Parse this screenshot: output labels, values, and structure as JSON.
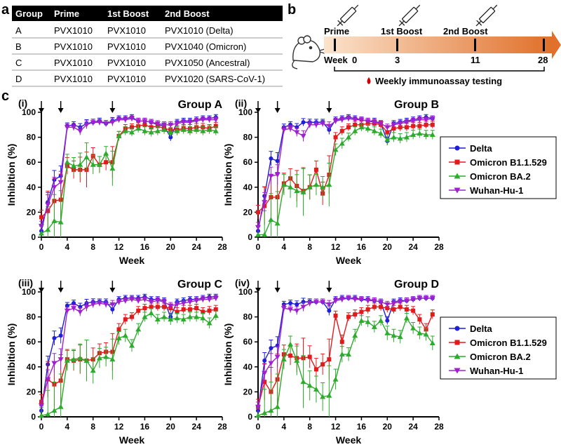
{
  "panel_labels": {
    "a": "a",
    "b": "b",
    "c": "c"
  },
  "table": {
    "headers": [
      "Group",
      "Prime",
      "1st Boost",
      "2nd Boost"
    ],
    "rows": [
      [
        "A",
        "PVX1010",
        "PVX1010",
        "PVX1010 (Delta)"
      ],
      [
        "B",
        "PVX1010",
        "PVX1010",
        "PVX1040 (Omicron)"
      ],
      [
        "C",
        "PVX1010",
        "PVX1010",
        "PVX1050 (Ancestral)"
      ],
      [
        "D",
        "PVX1010",
        "PVX1010",
        "PVX1020 (SARS-CoV-1)"
      ]
    ]
  },
  "timeline": {
    "events": [
      {
        "label": "Prime",
        "week": "0"
      },
      {
        "label": "1st Boost",
        "week": "3"
      },
      {
        "label": "2nd Boost",
        "week": "11"
      },
      {
        "label": "",
        "week": "28"
      }
    ],
    "week_prefix": "Week",
    "testing_label": "Weekly immunoassay testing",
    "colors": {
      "gradient_start": "#fbe3cc",
      "gradient_end": "#e0702a",
      "drop": "#cc0000"
    }
  },
  "legend": {
    "entries": [
      "Delta",
      "Omicron B1.1.529",
      "Omicron BA.2",
      "Wuhan-Hu-1"
    ]
  },
  "chart_data": [
    {
      "type": "line",
      "panel": "(i)",
      "title": "Group A",
      "xlabel": "Week",
      "ylabel": "Inhibition (%)",
      "xlim": [
        0,
        28
      ],
      "ylim": [
        0,
        100
      ],
      "xticks": [
        0,
        4,
        8,
        12,
        16,
        20,
        24,
        28
      ],
      "yticks": [
        0,
        20,
        40,
        60,
        80,
        100
      ],
      "dose_weeks": [
        0,
        3,
        11
      ],
      "x": [
        0,
        1,
        2,
        3,
        4,
        5,
        6,
        7,
        8,
        9,
        10,
        11,
        12,
        13,
        14,
        15,
        16,
        17,
        18,
        19,
        20,
        21,
        22,
        23,
        24,
        25,
        26,
        27
      ],
      "series": [
        {
          "name": "Delta",
          "color": "#1f1fd6",
          "marker": "circle",
          "values": [
            5,
            28,
            46,
            49,
            89,
            90,
            88,
            91,
            92,
            93,
            91,
            93,
            95,
            95,
            96,
            93,
            93,
            92,
            90,
            89,
            80,
            92,
            93,
            93,
            94,
            95,
            95,
            96
          ]
        },
        {
          "name": "Omicron B1.1.529",
          "color": "#e31a1c",
          "marker": "square",
          "values": [
            16,
            21,
            29,
            30,
            57,
            54,
            54,
            54,
            65,
            58,
            60,
            60,
            81,
            87,
            88,
            89,
            90,
            88,
            89,
            87,
            86,
            86,
            87,
            87,
            88,
            88,
            87,
            89
          ]
        },
        {
          "name": "Omicron BA.2",
          "color": "#2cab2c",
          "marker": "triangle",
          "values": [
            3,
            6,
            13,
            12,
            60,
            57,
            58,
            64,
            58,
            58,
            67,
            55,
            81,
            85,
            84,
            87,
            85,
            84,
            85,
            86,
            84,
            85,
            86,
            85,
            86,
            85,
            86,
            85
          ]
        },
        {
          "name": "Wuhan-Hu-1",
          "color": "#a020d0",
          "marker": "tri-down",
          "values": [
            9,
            26,
            40,
            44,
            88,
            88,
            85,
            90,
            92,
            92,
            91,
            92,
            94,
            94,
            95,
            93,
            93,
            92,
            91,
            90,
            90,
            91,
            92,
            92,
            93,
            94,
            94,
            94
          ]
        }
      ]
    },
    {
      "type": "line",
      "panel": "(ii)",
      "title": "Group B",
      "xlabel": "Week",
      "ylabel": "Inhibition (%)",
      "xlim": [
        0,
        28
      ],
      "ylim": [
        0,
        100
      ],
      "xticks": [
        0,
        4,
        8,
        12,
        16,
        20,
        24,
        28
      ],
      "yticks": [
        0,
        20,
        40,
        60,
        80,
        100
      ],
      "dose_weeks": [
        0,
        3,
        11
      ],
      "x": [
        0,
        1,
        2,
        3,
        4,
        5,
        6,
        7,
        8,
        9,
        10,
        11,
        12,
        13,
        14,
        15,
        16,
        17,
        18,
        19,
        20,
        21,
        22,
        23,
        24,
        25,
        26,
        27
      ],
      "series": [
        {
          "name": "Delta",
          "color": "#1f1fd6",
          "marker": "circle",
          "values": [
            5,
            33,
            63,
            61,
            88,
            90,
            88,
            92,
            92,
            92,
            92,
            86,
            94,
            95,
            96,
            95,
            94,
            93,
            93,
            91,
            77,
            91,
            92,
            93,
            94,
            95,
            96,
            95
          ]
        },
        {
          "name": "Omicron B1.1.529",
          "color": "#e31a1c",
          "marker": "square",
          "values": [
            20,
            25,
            32,
            32,
            43,
            47,
            41,
            37,
            40,
            54,
            35,
            50,
            80,
            85,
            88,
            90,
            90,
            91,
            91,
            90,
            84,
            87,
            88,
            88,
            89,
            89,
            90,
            90
          ]
        },
        {
          "name": "Omicron BA.2",
          "color": "#2cab2c",
          "marker": "triangle",
          "values": [
            2,
            2,
            14,
            11,
            42,
            40,
            37,
            36,
            40,
            42,
            40,
            42,
            70,
            75,
            80,
            85,
            88,
            87,
            85,
            83,
            78,
            80,
            79,
            80,
            82,
            83,
            82,
            82
          ]
        },
        {
          "name": "Wuhan-Hu-1",
          "color": "#a020d0",
          "marker": "tri-down",
          "values": [
            8,
            28,
            49,
            50,
            86,
            87,
            84,
            81,
            90,
            90,
            91,
            89,
            93,
            94,
            95,
            94,
            94,
            93,
            92,
            91,
            88,
            90,
            91,
            92,
            93,
            94,
            94,
            95
          ]
        }
      ]
    },
    {
      "type": "line",
      "panel": "(iii)",
      "title": "Group C",
      "xlabel": "Week",
      "ylabel": "Inhibition (%)",
      "xlim": [
        0,
        28
      ],
      "ylim": [
        0,
        100
      ],
      "xticks": [
        0,
        4,
        8,
        12,
        16,
        20,
        24,
        28
      ],
      "yticks": [
        0,
        20,
        40,
        60,
        80,
        100
      ],
      "dose_weeks": [
        0,
        3,
        11
      ],
      "x": [
        0,
        1,
        2,
        3,
        4,
        5,
        6,
        7,
        8,
        9,
        10,
        11,
        12,
        13,
        14,
        15,
        16,
        17,
        18,
        19,
        20,
        21,
        22,
        23,
        24,
        25,
        26,
        27
      ],
      "series": [
        {
          "name": "Delta",
          "color": "#1f1fd6",
          "marker": "circle",
          "values": [
            5,
            42,
            63,
            65,
            89,
            91,
            88,
            91,
            92,
            92,
            92,
            86,
            94,
            95,
            95,
            95,
            96,
            94,
            94,
            93,
            80,
            92,
            93,
            94,
            94,
            95,
            96,
            96
          ]
        },
        {
          "name": "Omicron B1.1.529",
          "color": "#e31a1c",
          "marker": "square",
          "values": [
            12,
            30,
            26,
            29,
            46,
            45,
            46,
            45,
            46,
            51,
            52,
            52,
            70,
            78,
            80,
            85,
            87,
            88,
            88,
            88,
            87,
            84,
            86,
            86,
            87,
            84,
            85,
            86
          ]
        },
        {
          "name": "Omicron BA.2",
          "color": "#2cab2c",
          "marker": "triangle",
          "values": [
            1,
            2,
            5,
            8,
            45,
            46,
            47,
            45,
            37,
            47,
            48,
            46,
            63,
            65,
            57,
            70,
            80,
            83,
            78,
            80,
            78,
            79,
            78,
            80,
            80,
            79,
            75,
            81
          ]
        },
        {
          "name": "Wuhan-Hu-1",
          "color": "#a020d0",
          "marker": "tri-down",
          "values": [
            9,
            30,
            43,
            46,
            85,
            87,
            84,
            88,
            90,
            91,
            90,
            90,
            92,
            93,
            94,
            93,
            94,
            92,
            93,
            92,
            89,
            90,
            91,
            92,
            93,
            94,
            94,
            95
          ]
        }
      ]
    },
    {
      "type": "line",
      "panel": "(iv)",
      "title": "Group D",
      "xlabel": "Week",
      "ylabel": "Inhibition (%)",
      "xlim": [
        0,
        28
      ],
      "ylim": [
        0,
        100
      ],
      "xticks": [
        0,
        4,
        8,
        12,
        16,
        20,
        24,
        28
      ],
      "yticks": [
        0,
        20,
        40,
        60,
        80,
        100
      ],
      "dose_weeks": [
        0,
        3,
        11
      ],
      "x": [
        0,
        1,
        2,
        3,
        4,
        5,
        6,
        7,
        8,
        9,
        10,
        11,
        12,
        13,
        14,
        15,
        16,
        17,
        18,
        19,
        20,
        21,
        22,
        23,
        24,
        25,
        26,
        27
      ],
      "series": [
        {
          "name": "Delta",
          "color": "#1f1fd6",
          "marker": "circle",
          "values": [
            5,
            45,
            55,
            57,
            90,
            91,
            90,
            92,
            92,
            92,
            92,
            85,
            94,
            95,
            95,
            95,
            94,
            94,
            93,
            92,
            77,
            92,
            93,
            93,
            94,
            95,
            95,
            95
          ]
        },
        {
          "name": "Omicron B1.1.529",
          "color": "#e31a1c",
          "marker": "square",
          "values": [
            8,
            28,
            20,
            30,
            50,
            49,
            47,
            47,
            48,
            38,
            42,
            46,
            81,
            60,
            80,
            82,
            84,
            86,
            88,
            88,
            87,
            86,
            88,
            86,
            85,
            78,
            70,
            82
          ]
        },
        {
          "name": "Omicron BA.2",
          "color": "#2cab2c",
          "marker": "triangle",
          "values": [
            1,
            3,
            5,
            8,
            46,
            58,
            45,
            28,
            25,
            22,
            16,
            17,
            30,
            50,
            50,
            65,
            77,
            76,
            72,
            77,
            67,
            65,
            64,
            79,
            71,
            67,
            66,
            59
          ]
        },
        {
          "name": "Wuhan-Hu-1",
          "color": "#a020d0",
          "marker": "tri-down",
          "values": [
            8,
            35,
            43,
            48,
            87,
            86,
            85,
            88,
            91,
            92,
            92,
            90,
            93,
            94,
            95,
            94,
            94,
            93,
            93,
            92,
            90,
            91,
            92,
            93,
            94,
            95,
            95,
            95
          ]
        }
      ]
    }
  ]
}
